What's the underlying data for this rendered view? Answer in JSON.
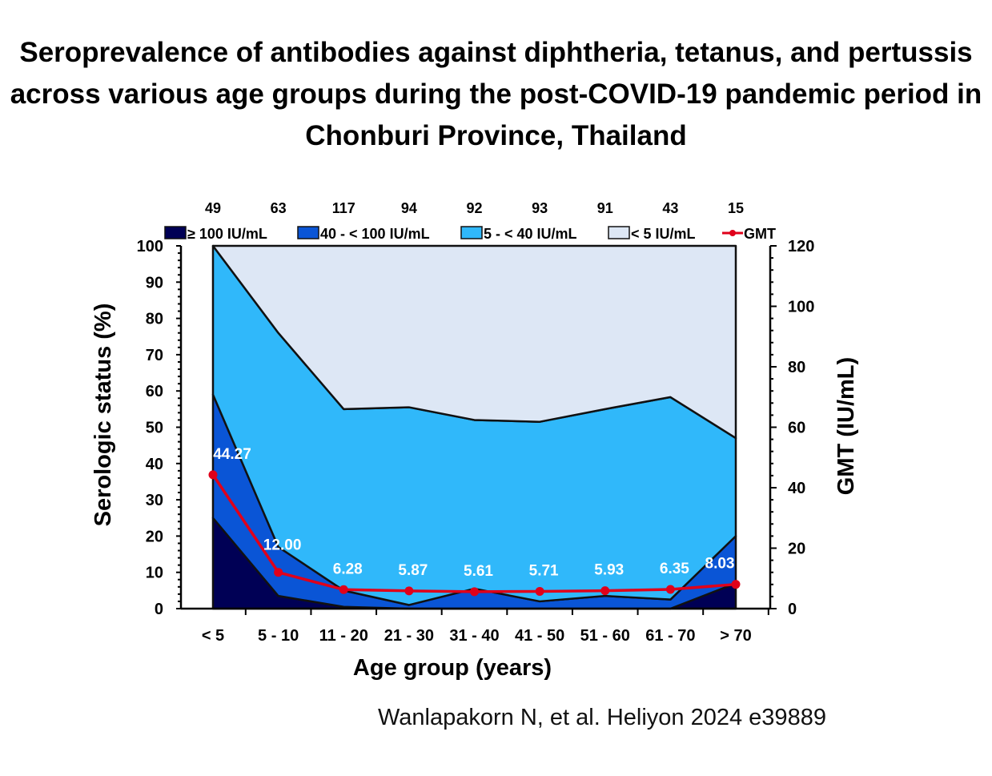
{
  "chart_data": {
    "type": "area",
    "title": "Seroprevalence of antibodies against diphtheria, tetanus, and pertussis across various age groups during the post-COVID-19 pandemic period in Chonburi Province, Thailand",
    "xlabel": "Age group (years)",
    "ylabel": "Serologic status (%)",
    "y2label": "GMT (IU/mL)",
    "ylim": [
      0,
      100
    ],
    "y2lim": [
      0,
      120
    ],
    "yticks": [
      0,
      10,
      20,
      30,
      40,
      50,
      60,
      70,
      80,
      90,
      100
    ],
    "y2ticks": [
      0,
      20,
      40,
      60,
      80,
      100,
      120
    ],
    "categories": [
      "< 5",
      "5 - 10",
      "11 - 20",
      "21 - 30",
      "31 - 40",
      "41 - 50",
      "51 - 60",
      "61 - 70",
      "> 70"
    ],
    "n": [
      "49",
      "63",
      "117",
      "94",
      "92",
      "93",
      "91",
      "43",
      "15"
    ],
    "series": [
      {
        "name": "≥ 100 IU/mL",
        "color": "#000055",
        "values": [
          25,
          3.5,
          0.5,
          0,
          0,
          0,
          0,
          0,
          7
        ]
      },
      {
        "name": "40 - < 100 IU/mL",
        "color": "#0a55d6",
        "values": [
          34,
          13.5,
          4.5,
          1,
          5.5,
          2,
          3.5,
          2.5,
          13
        ]
      },
      {
        "name": "5 - < 40 IU/mL",
        "color": "#30b8fa",
        "values": [
          41,
          59,
          50,
          54.5,
          46.5,
          49.5,
          51.5,
          55.8,
          27
        ]
      },
      {
        "name": "< 5 IU/mL",
        "color": "#dde7f5",
        "values": [
          0,
          24,
          45,
          44.5,
          48,
          48.5,
          45,
          41.7,
          53
        ]
      }
    ],
    "gmt": {
      "name": "GMT",
      "color": "#e0001a",
      "values": [
        44.27,
        12.0,
        6.28,
        5.87,
        5.61,
        5.71,
        5.93,
        6.35,
        8.03
      ],
      "labels": [
        "44.27",
        "12.00",
        "6.28",
        "5.87",
        "5.61",
        "5.71",
        "5.93",
        "6.35",
        "8.03"
      ]
    },
    "legend": "top"
  },
  "citation": "Wanlapakorn N, et al. Heliyon 2024 e39889"
}
